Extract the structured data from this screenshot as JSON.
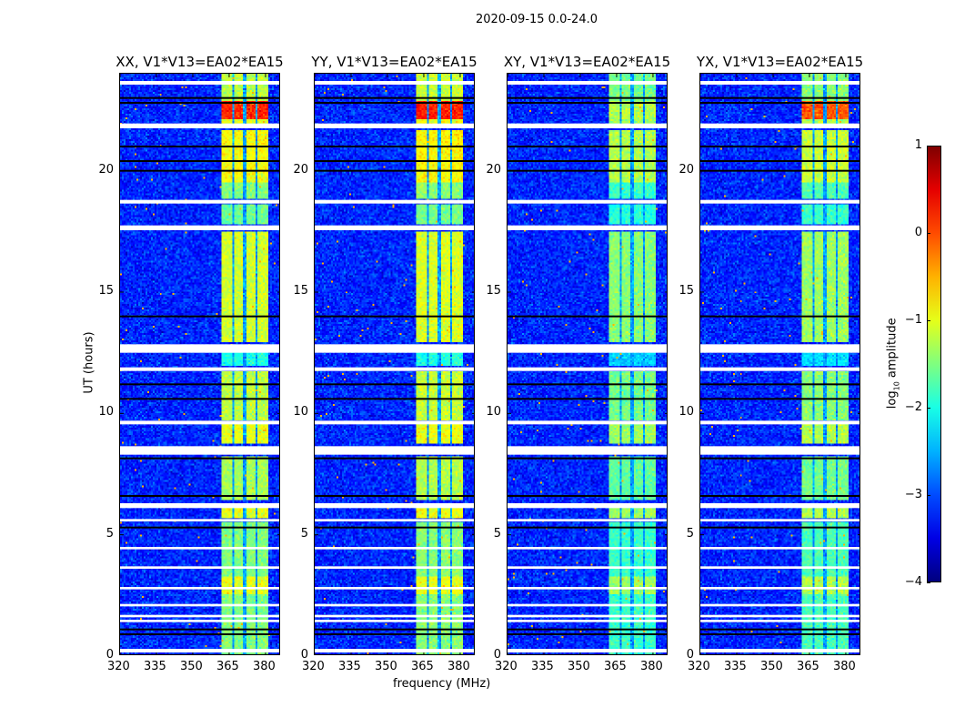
{
  "chart_data": {
    "type": "heatmap",
    "title": "2020-09-15 0.0-24.0",
    "xlabel": "frequency (MHz)",
    "ylabel": "UT (hours)",
    "xlim": [
      320,
      386.4
    ],
    "ylim": [
      0,
      24
    ],
    "xticks": [
      320,
      335,
      350,
      365,
      380
    ],
    "yticks": [
      0,
      5,
      10,
      15,
      20
    ],
    "panels": [
      {
        "title": "XX, V1*V13=EA02*EA15",
        "offset": 0
      },
      {
        "title": "YY, V1*V13=EA02*EA15",
        "offset": 0.05
      },
      {
        "title": "XY, V1*V13=EA02*EA15",
        "offset": -0.35
      },
      {
        "title": "YX, V1*V13=EA02*EA15",
        "offset": -0.25
      }
    ],
    "background_level": -3.2,
    "band": {
      "fmin": 362,
      "fmax": 382,
      "sub_edges": [
        367,
        372,
        377
      ]
    },
    "band_segments": [
      [
        0,
        2.5,
        -1.5
      ],
      [
        2.5,
        3.2,
        -1.0
      ],
      [
        3.2,
        5.5,
        -1.5
      ],
      [
        5.6,
        6.1,
        -1.0
      ],
      [
        6.4,
        8.2,
        -1.3
      ],
      [
        8.7,
        9.5,
        -1.0
      ],
      [
        9.7,
        11.7,
        -1.2
      ],
      [
        11.9,
        12.5,
        -2.0
      ],
      [
        12.9,
        17.5,
        -1.1
      ],
      [
        17.8,
        18.6,
        -1.6
      ],
      [
        18.8,
        19.5,
        -1.5
      ],
      [
        19.5,
        21.7,
        -0.9
      ],
      [
        21.9,
        22.1,
        -1.0
      ],
      [
        22.1,
        22.9,
        0.2
      ],
      [
        22.9,
        24.0,
        -1.2
      ]
    ],
    "flagged_intervals": [
      [
        0.15,
        0.3
      ],
      [
        1.4,
        1.5
      ],
      [
        1.6,
        1.7
      ],
      [
        2.05,
        2.15
      ],
      [
        2.75,
        2.85
      ],
      [
        3.6,
        3.7
      ],
      [
        4.4,
        4.5
      ],
      [
        5.55,
        5.65
      ],
      [
        6.1,
        6.3
      ],
      [
        8.3,
        8.65
      ],
      [
        9.55,
        9.7
      ],
      [
        11.75,
        11.9
      ],
      [
        12.5,
        12.85
      ],
      [
        17.55,
        17.75
      ],
      [
        18.65,
        18.8
      ],
      [
        21.75,
        21.95
      ],
      [
        23.55,
        23.7
      ]
    ],
    "dark_lines": [
      0.9,
      1.1,
      5.3,
      6.6,
      8.15,
      10.6,
      11.2,
      14.0,
      20.0,
      20.4,
      21.0,
      22.8,
      23.0
    ],
    "colorbar": {
      "label_main": "log",
      "label_sub": "10",
      "label_rest": " amplitude",
      "min": -4,
      "max": 1,
      "ticks": [
        "1",
        "0",
        "−1",
        "−2",
        "−3",
        "−4"
      ],
      "tick_values": [
        1,
        0,
        -1,
        -2,
        -3,
        -4
      ],
      "colormap": "jet"
    }
  }
}
